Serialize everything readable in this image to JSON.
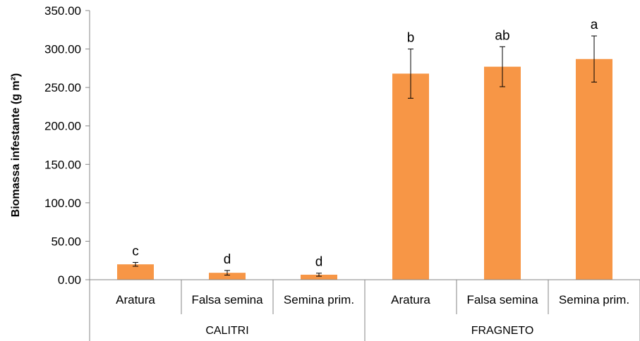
{
  "chart_data": {
    "type": "bar",
    "title": "",
    "xlabel": "",
    "ylabel": "Biomassa infestante (g m²)",
    "ylim": [
      0,
      350
    ],
    "ytick_step": 50,
    "ytick_labels": [
      "0.00",
      "50.00",
      "100.00",
      "150.00",
      "200.00",
      "250.00",
      "300.00",
      "350.00"
    ],
    "grid": false,
    "legend": "none",
    "bar_color": "#F79646",
    "groups": [
      {
        "name": "CALITRI",
        "bars": [
          {
            "category": "Aratura",
            "value": 20,
            "error": 2.5,
            "letter": "c"
          },
          {
            "category": "Falsa semina",
            "value": 9,
            "error": 3,
            "letter": "d"
          },
          {
            "category": "Semina prim.",
            "value": 6.5,
            "error": 2,
            "letter": "d"
          }
        ]
      },
      {
        "name": "FRAGNETO",
        "bars": [
          {
            "category": "Aratura",
            "value": 268,
            "error": 32,
            "letter": "b"
          },
          {
            "category": "Falsa semina",
            "value": 277,
            "error": 26,
            "letter": "ab"
          },
          {
            "category": "Semina prim.",
            "value": 287,
            "error": 30,
            "letter": "a"
          }
        ]
      }
    ]
  }
}
